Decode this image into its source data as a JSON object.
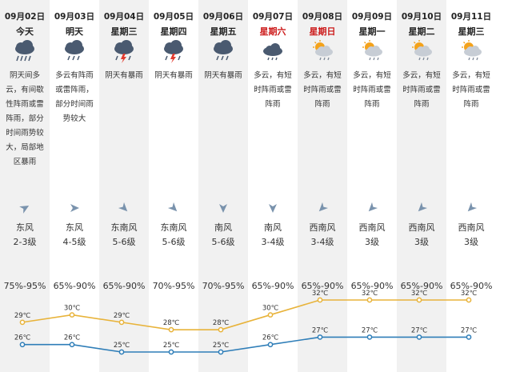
{
  "forecast": {
    "days": [
      {
        "date": "09月02日",
        "day": "今天",
        "weekend": false,
        "icon": "heavy-rain",
        "desc": "阴天间多云，有间歇性阵雨或雷阵雨，部分时间雨势较大，局部地区暴雨",
        "wind_dir": "东风",
        "wind_level": "2-3级",
        "wind_arrow_deg": 60,
        "humidity": "75%-95%"
      },
      {
        "date": "09月03日",
        "day": "明天",
        "weekend": false,
        "icon": "rain",
        "desc": "多云有阵雨或雷阵雨，部分时间雨势较大",
        "wind_dir": "东风",
        "wind_level": "4-5级",
        "wind_arrow_deg": 90,
        "humidity": "65%-90%"
      },
      {
        "date": "09月04日",
        "day": "星期三",
        "weekend": false,
        "icon": "thunder-rain",
        "desc": "阴天有暴雨",
        "wind_dir": "东南风",
        "wind_level": "5-6级",
        "wind_arrow_deg": 135,
        "humidity": "65%-90%"
      },
      {
        "date": "09月05日",
        "day": "星期四",
        "weekend": false,
        "icon": "thunder-rain",
        "desc": "阴天有暴雨",
        "wind_dir": "东南风",
        "wind_level": "5-6级",
        "wind_arrow_deg": 135,
        "humidity": "70%-95%"
      },
      {
        "date": "09月06日",
        "day": "星期五",
        "weekend": false,
        "icon": "rain",
        "desc": "阴天有暴雨",
        "wind_dir": "南风",
        "wind_level": "5-6级",
        "wind_arrow_deg": 180,
        "humidity": "70%-95%"
      },
      {
        "date": "09月07日",
        "day": "星期六",
        "weekend": true,
        "icon": "light-rain",
        "desc": "多云，有短时阵雨或雷阵雨",
        "wind_dir": "南风",
        "wind_level": "3-4级",
        "wind_arrow_deg": 180,
        "humidity": "65%-90%"
      },
      {
        "date": "09月08日",
        "day": "星期日",
        "weekend": true,
        "icon": "sun-rain",
        "desc": "多云，有短时阵雨或雷阵雨",
        "wind_dir": "西南风",
        "wind_level": "3-4级",
        "wind_arrow_deg": 225,
        "humidity": "65%-90%"
      },
      {
        "date": "09月09日",
        "day": "星期一",
        "weekend": false,
        "icon": "sun-rain",
        "desc": "多云，有短时阵雨或雷阵雨",
        "wind_dir": "西南风",
        "wind_level": "3级",
        "wind_arrow_deg": 225,
        "humidity": "65%-90%"
      },
      {
        "date": "09月10日",
        "day": "星期二",
        "weekend": false,
        "icon": "sun-rain",
        "desc": "多云，有短时阵雨或雷阵雨",
        "wind_dir": "西南风",
        "wind_level": "3级",
        "wind_arrow_deg": 225,
        "humidity": "65%-90%"
      },
      {
        "date": "09月11日",
        "day": "星期三",
        "weekend": false,
        "icon": "sun-rain",
        "desc": "多云，有短时阵雨或雷阵雨",
        "wind_dir": "西南风",
        "wind_level": "3级",
        "wind_arrow_deg": 225,
        "humidity": "65%-90%"
      }
    ],
    "colors": {
      "high": "#e8b33a",
      "low": "#2f7eb8",
      "shade": "#f1f1f1",
      "weekend": "#cc1a1a",
      "cloud": "#4a5a70",
      "sun": "#f3a21b"
    }
  },
  "chart_data": {
    "type": "line",
    "categories": [
      "09月02日",
      "09月03日",
      "09月04日",
      "09月05日",
      "09月06日",
      "09月07日",
      "09月08日",
      "09月09日",
      "09月10日",
      "09月11日"
    ],
    "series": [
      {
        "values": [
          29,
          30,
          29,
          28,
          28,
          30,
          32,
          32,
          32,
          32
        ],
        "labels": [
          "29℃",
          "30℃",
          "29℃",
          "28℃",
          "28℃",
          "30℃",
          "32℃",
          "32℃",
          "32℃",
          "32℃"
        ],
        "color": "#e8b33a"
      },
      {
        "values": [
          26,
          26,
          25,
          25,
          25,
          26,
          27,
          27,
          27,
          27
        ],
        "labels": [
          "26℃",
          "26℃",
          "25℃",
          "25℃",
          "25℃",
          "26℃",
          "27℃",
          "27℃",
          "27℃",
          "27℃"
        ],
        "color": "#2f7eb8"
      }
    ],
    "ylim": [
      25,
      32
    ],
    "grid": false,
    "legend": "none"
  }
}
